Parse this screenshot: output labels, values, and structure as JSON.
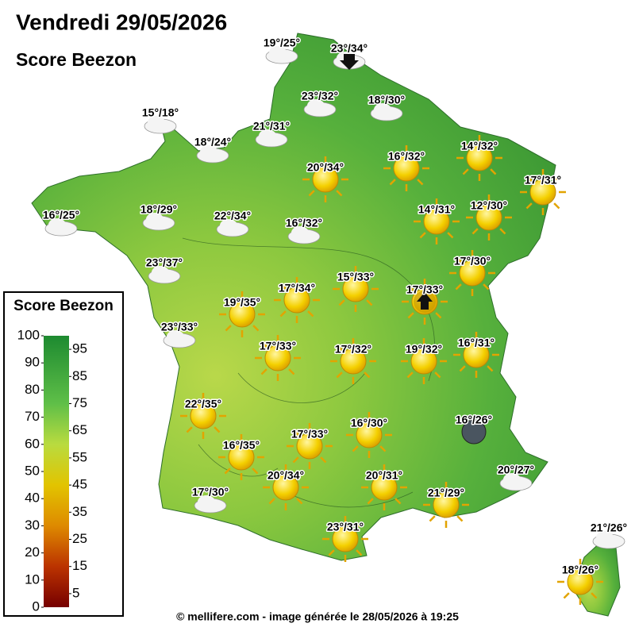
{
  "header": {
    "title": "Vendredi 29/05/2026",
    "subtitle": "Score Beezon"
  },
  "legend": {
    "title": "Score Beezon",
    "range": [
      0,
      100
    ],
    "ticks": [
      100,
      90,
      80,
      70,
      60,
      50,
      40,
      30,
      20,
      10,
      0
    ],
    "minor_ticks": [
      95,
      85,
      75,
      65,
      55,
      45,
      35,
      25,
      15,
      5
    ]
  },
  "stations": [
    {
      "label": "19°/25°",
      "icon": "cloud"
    },
    {
      "label": "23°/34°",
      "icon": "cloud-arrow"
    },
    {
      "label": "23°/32°",
      "icon": "cloud"
    },
    {
      "label": "18°/30°",
      "icon": "cloud"
    },
    {
      "label": "15°/18°",
      "icon": "cloud"
    },
    {
      "label": "21°/31°",
      "icon": "cloud"
    },
    {
      "label": "18°/24°",
      "icon": "cloud"
    },
    {
      "label": "20°/34°",
      "icon": "sun"
    },
    {
      "label": "16°/32°",
      "icon": "sun"
    },
    {
      "label": "14°/32°",
      "icon": "sun"
    },
    {
      "label": "17°/31°",
      "icon": "sun"
    },
    {
      "label": "16°/25°",
      "icon": "cloud"
    },
    {
      "label": "18°/29°",
      "icon": "cloud"
    },
    {
      "label": "22°/34°",
      "icon": "cloud"
    },
    {
      "label": "16°/32°",
      "icon": "cloud"
    },
    {
      "label": "14°/31°",
      "icon": "sun"
    },
    {
      "label": "12°/30°",
      "icon": "sun"
    },
    {
      "label": "23°/37°",
      "icon": "cloud"
    },
    {
      "label": "17°/30°",
      "icon": "sun"
    },
    {
      "label": "15°/33°",
      "icon": "sun"
    },
    {
      "label": "17°/34°",
      "icon": "sun"
    },
    {
      "label": "17°/33°",
      "icon": "storm-arrow"
    },
    {
      "label": "19°/35°",
      "icon": "sun"
    },
    {
      "label": "23°/33°",
      "icon": "cloud"
    },
    {
      "label": "17°/33°",
      "icon": "sun"
    },
    {
      "label": "17°/32°",
      "icon": "sun"
    },
    {
      "label": "19°/32°",
      "icon": "sun"
    },
    {
      "label": "16°/31°",
      "icon": "sun"
    },
    {
      "label": "22°/35°",
      "icon": "sun"
    },
    {
      "label": "16°/26°",
      "icon": "storm"
    },
    {
      "label": "16°/30°",
      "icon": "sun"
    },
    {
      "label": "17°/33°",
      "icon": "sun"
    },
    {
      "label": "16°/35°",
      "icon": "sun"
    },
    {
      "label": "20°/34°",
      "icon": "sun"
    },
    {
      "label": "20°/31°",
      "icon": "sun"
    },
    {
      "label": "21°/29°",
      "icon": "sun"
    },
    {
      "label": "20°/27°",
      "icon": "cloud"
    },
    {
      "label": "17°/30°",
      "icon": "cloud"
    },
    {
      "label": "23°/31°",
      "icon": "sun"
    },
    {
      "label": "21°/26°",
      "icon": "cloud"
    },
    {
      "label": "18°/26°",
      "icon": "sun"
    }
  ],
  "footer": "© mellifere.com - image générée le 28/05/2026 à 19:25"
}
